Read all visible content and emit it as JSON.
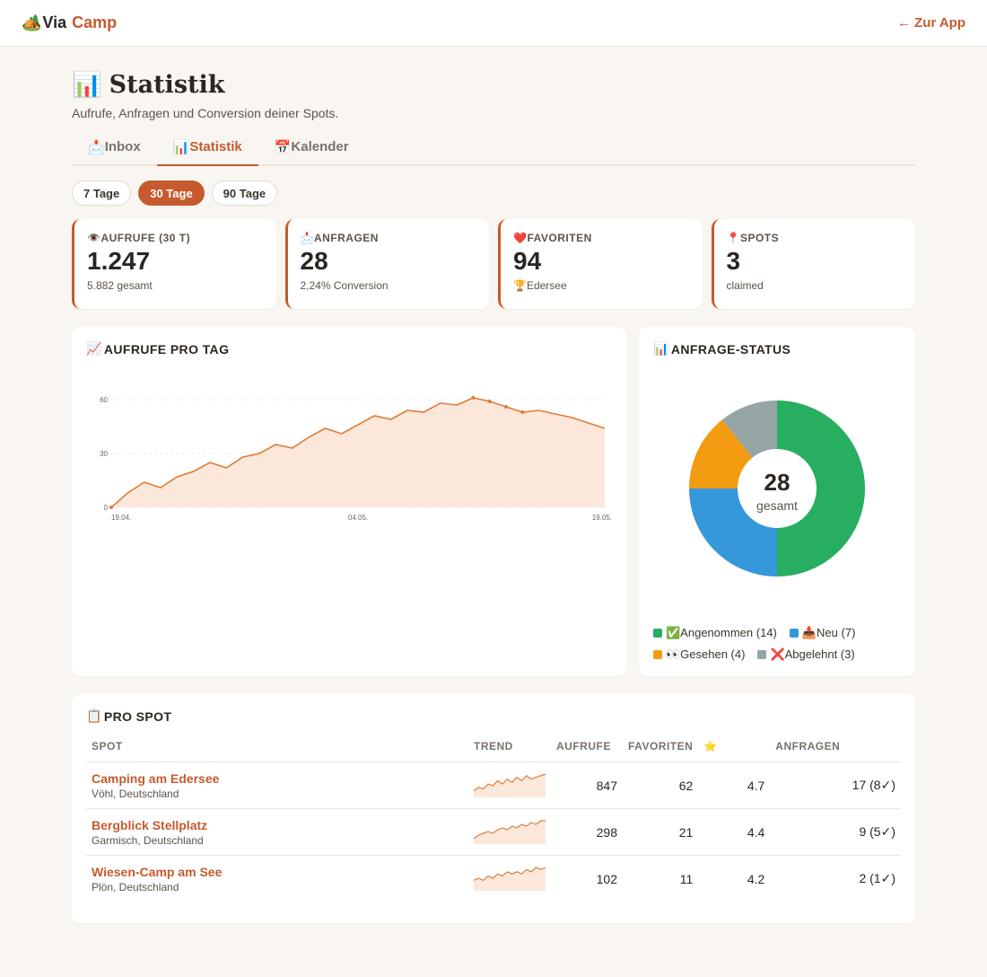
{
  "header": {
    "logo_icon": "🏕️",
    "logo_part1": "Via",
    "logo_part2": "Camp",
    "back_link": "← Zur App"
  },
  "page": {
    "title_icon": "📊",
    "title": "Statistik",
    "subtitle": "Aufrufe, Anfragen und Conversion deiner Spots."
  },
  "tabs": [
    {
      "icon": "📩",
      "label": "Inbox",
      "active": false
    },
    {
      "icon": "📊",
      "label": "Statistik",
      "active": true
    },
    {
      "icon": "📅",
      "label": "Kalender",
      "active": false
    }
  ],
  "ranges": [
    {
      "label": "7 Tage",
      "active": false
    },
    {
      "label": "30 Tage",
      "active": true
    },
    {
      "label": "90 Tage",
      "active": false
    }
  ],
  "kpis": [
    {
      "icon": "👁️",
      "label": "AUFRUFE (30 T)",
      "value": "1.247",
      "sub": "5.882 gesamt"
    },
    {
      "icon": "📩",
      "label": "ANFRAGEN",
      "value": "28",
      "sub": "2,24% Conversion"
    },
    {
      "icon": "❤️",
      "label": "FAVORITEN",
      "value": "94",
      "sub": "🏆Edersee"
    },
    {
      "icon": "📍",
      "label": "SPOTS",
      "value": "3",
      "sub": "claimed"
    }
  ],
  "line_card": {
    "icon": "📈",
    "title": "AUFRUFE PRO TAG"
  },
  "donut_card": {
    "icon": "📊",
    "title": "ANFRAGE-STATUS",
    "center_value": "28",
    "center_label": "gesamt"
  },
  "chart_data": [
    {
      "type": "area",
      "title": "AUFRUFE PRO TAG",
      "x_ticks": [
        "19.04.",
        "04.05.",
        "19.05."
      ],
      "y_ticks": [
        0,
        30,
        60
      ],
      "ylim": [
        0,
        70
      ],
      "grid": true,
      "values": [
        0,
        8,
        14,
        11,
        17,
        20,
        25,
        22,
        28,
        30,
        35,
        33,
        39,
        44,
        41,
        46,
        51,
        49,
        54,
        53,
        58,
        57,
        61,
        59,
        56,
        53,
        54,
        52,
        50,
        47,
        44
      ],
      "markers": [
        22,
        23,
        24,
        25
      ]
    },
    {
      "type": "pie",
      "title": "ANFRAGE-STATUS",
      "donut": true,
      "slices": [
        {
          "label": "✅Angenommen (14)",
          "value": 14,
          "color": "#27ae60"
        },
        {
          "label": "📥Neu (7)",
          "value": 7,
          "color": "#3498db"
        },
        {
          "label": "👀Gesehen (4)",
          "value": 4,
          "color": "#f39c12"
        },
        {
          "label": "❌Abgelehnt (3)",
          "value": 3,
          "color": "#95a5a6"
        }
      ]
    }
  ],
  "spot_table": {
    "icon": "📋",
    "title": "PRO SPOT",
    "columns": [
      "SPOT",
      "TREND",
      "AUFRUFE",
      "FAVORITEN",
      "⭐",
      "ANFRAGEN"
    ],
    "rows": [
      {
        "name": "Camping am Edersee",
        "location": "Vöhl, Deutschland",
        "trend": [
          3,
          5,
          4,
          7,
          6,
          9,
          7,
          10,
          8,
          11,
          9,
          12,
          10,
          11,
          12,
          13
        ],
        "views": "847",
        "favorites": "62",
        "rating": "4.7",
        "requests": "17 (8✓)"
      },
      {
        "name": "Bergblick Stellplatz",
        "location": "Garmisch, Deutschland",
        "trend": [
          2,
          4,
          5,
          6,
          5,
          7,
          8,
          7,
          9,
          8,
          10,
          9,
          11,
          10,
          12,
          12
        ],
        "views": "298",
        "favorites": "21",
        "rating": "4.4",
        "requests": "9 (5✓)"
      },
      {
        "name": "Wiesen-Camp am See",
        "location": "Plön, Deutschland",
        "trend": [
          4,
          5,
          4,
          6,
          5,
          7,
          6,
          8,
          7,
          8,
          7,
          9,
          8,
          10,
          9,
          10
        ],
        "views": "102",
        "favorites": "11",
        "rating": "4.2",
        "requests": "2 (1✓)"
      }
    ]
  },
  "colors": {
    "accent": "#c65a2e",
    "line": "#e07b39",
    "area": "#fbe8da"
  }
}
